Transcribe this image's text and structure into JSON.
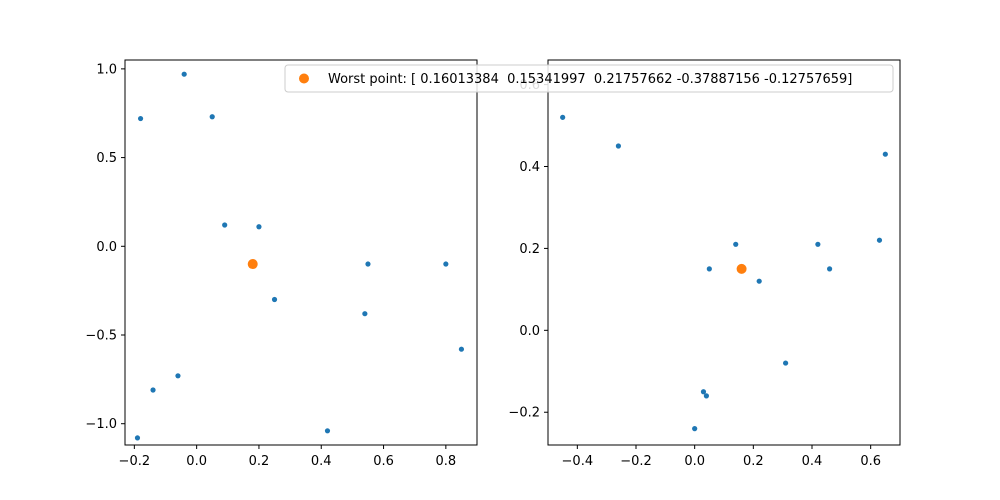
{
  "chart_data": [
    {
      "type": "scatter",
      "xlim": [
        -0.23,
        0.9
      ],
      "ylim": [
        -1.12,
        1.05
      ],
      "xticks": [
        -0.2,
        0.0,
        0.2,
        0.4,
        0.6,
        0.8
      ],
      "yticks": [
        -1.0,
        -0.5,
        0.0,
        0.5,
        1.0
      ],
      "xtick_labels": [
        "−0.2",
        "0.0",
        "0.2",
        "0.4",
        "0.6",
        "0.8"
      ],
      "ytick_labels": [
        "−1.0",
        "−0.5",
        "0.0",
        "0.5",
        "1.0"
      ],
      "grid": false,
      "series": [
        {
          "color": "#1f77b4",
          "marker_size": "small",
          "points": [
            [
              -0.04,
              0.97
            ],
            [
              -0.18,
              0.72
            ],
            [
              0.05,
              0.73
            ],
            [
              0.09,
              0.12
            ],
            [
              0.2,
              0.11
            ],
            [
              0.55,
              -0.1
            ],
            [
              0.8,
              -0.1
            ],
            [
              0.25,
              -0.3
            ],
            [
              0.54,
              -0.38
            ],
            [
              0.85,
              -0.58
            ],
            [
              -0.06,
              -0.73
            ],
            [
              -0.14,
              -0.81
            ],
            [
              -0.19,
              -1.08
            ],
            [
              0.42,
              -1.04
            ]
          ]
        },
        {
          "name": "Worst point: [ 0.16013384  0.15341997  0.21757662 -0.37887156 -0.12757659]",
          "color": "#ff7f0e",
          "marker_size": "large",
          "points": [
            [
              0.18,
              -0.1
            ]
          ]
        }
      ],
      "legend": {
        "placement": "top-right",
        "entry_series": 1
      }
    },
    {
      "type": "scatter",
      "xlim": [
        -0.5,
        0.7
      ],
      "ylim": [
        -0.28,
        0.66
      ],
      "xticks": [
        -0.4,
        -0.2,
        0.0,
        0.2,
        0.4,
        0.6
      ],
      "yticks": [
        -0.2,
        0.0,
        0.2,
        0.4,
        0.6
      ],
      "xtick_labels": [
        "−0.4",
        "−0.2",
        "0.0",
        "0.2",
        "0.4",
        "0.6"
      ],
      "ytick_labels": [
        "−0.2",
        "0.0",
        "0.2",
        "0.4",
        "0.6"
      ],
      "grid": false,
      "series": [
        {
          "color": "#1f77b4",
          "marker_size": "small",
          "points": [
            [
              -0.45,
              0.52
            ],
            [
              -0.26,
              0.45
            ],
            [
              0.14,
              0.21
            ],
            [
              0.05,
              0.15
            ],
            [
              0.22,
              0.12
            ],
            [
              0.42,
              0.21
            ],
            [
              0.46,
              0.15
            ],
            [
              0.63,
              0.22
            ],
            [
              0.65,
              0.43
            ],
            [
              0.31,
              -0.08
            ],
            [
              0.03,
              -0.15
            ],
            [
              0.04,
              -0.16
            ],
            [
              0.0,
              -0.24
            ]
          ]
        },
        {
          "color": "#ff7f0e",
          "marker_size": "large",
          "points": [
            [
              0.16,
              0.15
            ]
          ]
        }
      ]
    }
  ]
}
